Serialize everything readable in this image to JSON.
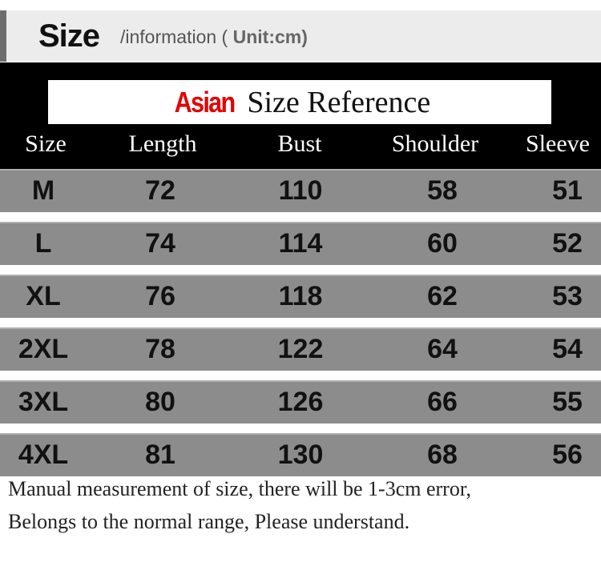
{
  "header": {
    "title": "Size",
    "subtitle": "/information (",
    "unit": "Unit:cm)"
  },
  "table_title": {
    "highlight": "Asian",
    "rest": "Size Reference",
    "highlight_color": "#e30000"
  },
  "columns": [
    "Size",
    "Length",
    "Bust",
    "Shoulder",
    "Sleeve"
  ],
  "rows": [
    [
      "M",
      "72",
      "110",
      "58",
      "51"
    ],
    [
      "L",
      "74",
      "114",
      "60",
      "52"
    ],
    [
      "XL",
      "76",
      "118",
      "62",
      "53"
    ],
    [
      "2XL",
      "78",
      "122",
      "64",
      "54"
    ],
    [
      "3XL",
      "80",
      "126",
      "66",
      "55"
    ],
    [
      "4XL",
      "81",
      "130",
      "68",
      "56"
    ]
  ],
  "footer": [
    "Manual measurement of size, there will be 1-3cm error,",
    "Belongs to the normal range, Please understand."
  ]
}
